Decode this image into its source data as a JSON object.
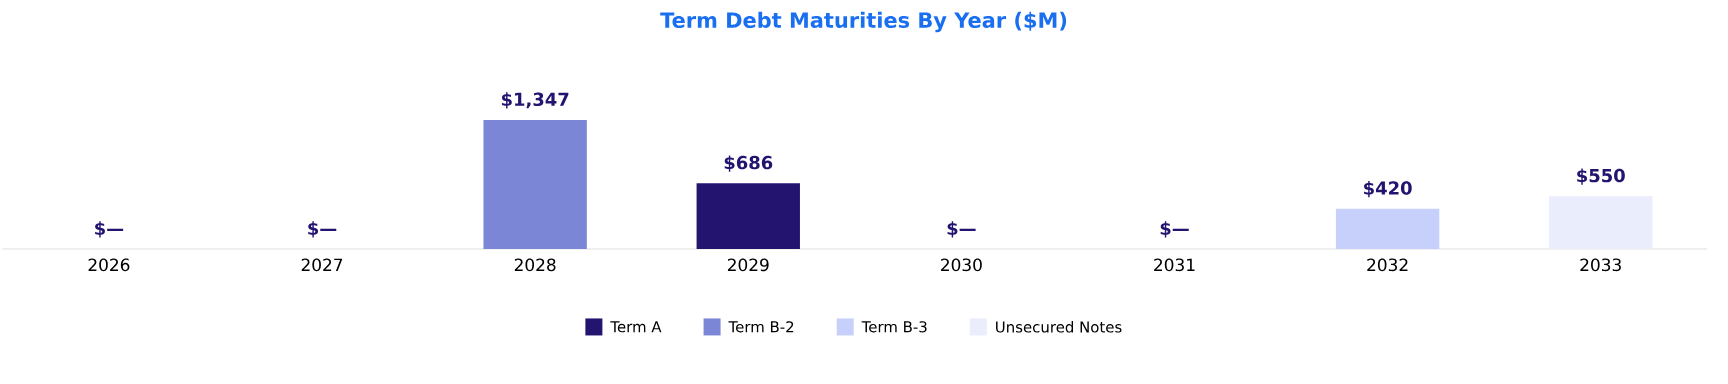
{
  "chart_data": {
    "type": "bar",
    "title": "Term Debt Maturities By Year ($M)",
    "categories": [
      "2026",
      "2027",
      "2028",
      "2029",
      "2030",
      "2031",
      "2032",
      "2033"
    ],
    "series": [
      {
        "name": "Term A",
        "color": "#231470",
        "values": [
          null,
          null,
          null,
          686,
          null,
          null,
          null,
          null
        ],
        "value_labels": [
          null,
          null,
          null,
          "$686",
          null,
          null,
          null,
          null
        ]
      },
      {
        "name": "Term B-2",
        "color": "#7b87d6",
        "values": [
          null,
          null,
          1347,
          null,
          null,
          null,
          null,
          null
        ],
        "value_labels": [
          null,
          null,
          "$1,347",
          null,
          null,
          null,
          null,
          null
        ]
      },
      {
        "name": "Term B-3",
        "color": "#c7d0fb",
        "values": [
          null,
          null,
          null,
          null,
          null,
          null,
          420,
          null
        ],
        "value_labels": [
          null,
          null,
          null,
          null,
          null,
          null,
          "$420",
          null
        ]
      },
      {
        "name": "Unsecured Notes",
        "color": "#e9edfc",
        "values": [
          null,
          null,
          null,
          null,
          null,
          null,
          null,
          550
        ],
        "value_labels": [
          null,
          null,
          null,
          null,
          null,
          null,
          null,
          "$550"
        ]
      }
    ],
    "totals": [
      "$—",
      "$—",
      null,
      null,
      "$—",
      "$—",
      null,
      null
    ],
    "legend": "bottom"
  }
}
